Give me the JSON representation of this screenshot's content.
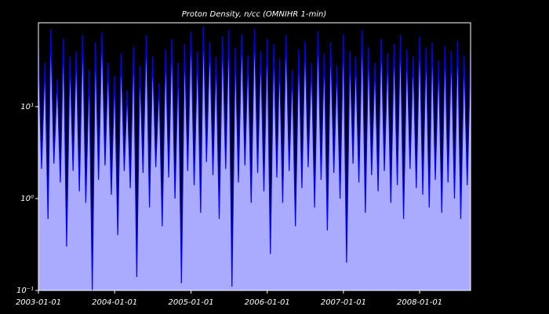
{
  "chart_data": {
    "type": "line",
    "title": "Proton Density, n/cc (OMNIHR 1-min)",
    "x": [
      "2003-01-01",
      "2003-01-16",
      "2003-02-01",
      "2003-02-16",
      "2003-03-01",
      "2003-03-16",
      "2003-04-01",
      "2003-04-16",
      "2003-05-01",
      "2003-05-16",
      "2003-06-01",
      "2003-06-16",
      "2003-07-01",
      "2003-07-16",
      "2003-08-01",
      "2003-08-16",
      "2003-09-01",
      "2003-09-16",
      "2003-10-01",
      "2003-10-16",
      "2003-11-01",
      "2003-11-16",
      "2003-12-01",
      "2003-12-16",
      "2004-01-01",
      "2004-01-16",
      "2004-02-01",
      "2004-02-16",
      "2004-03-01",
      "2004-03-16",
      "2004-04-01",
      "2004-04-16",
      "2004-05-01",
      "2004-05-16",
      "2004-06-01",
      "2004-06-16",
      "2004-07-01",
      "2004-07-16",
      "2004-08-01",
      "2004-08-16",
      "2004-09-01",
      "2004-09-16",
      "2004-10-01",
      "2004-10-16",
      "2004-11-01",
      "2004-11-16",
      "2004-12-01",
      "2004-12-16",
      "2005-01-01",
      "2005-01-16",
      "2005-02-01",
      "2005-02-16",
      "2005-03-01",
      "2005-03-16",
      "2005-04-01",
      "2005-04-16",
      "2005-05-01",
      "2005-05-16",
      "2005-06-01",
      "2005-06-16",
      "2005-07-01",
      "2005-07-16",
      "2005-08-01",
      "2005-08-16",
      "2005-09-01",
      "2005-09-16",
      "2005-10-01",
      "2005-10-16",
      "2005-11-01",
      "2005-11-16",
      "2005-12-01",
      "2005-12-16",
      "2006-01-01",
      "2006-01-16",
      "2006-02-01",
      "2006-02-16",
      "2006-03-01",
      "2006-03-16",
      "2006-04-01",
      "2006-04-16",
      "2006-05-01",
      "2006-05-16",
      "2006-06-01",
      "2006-06-16",
      "2006-07-01",
      "2006-07-16",
      "2006-08-01",
      "2006-08-16",
      "2006-09-01",
      "2006-09-16",
      "2006-10-01",
      "2006-10-16",
      "2006-11-01",
      "2006-11-16",
      "2006-12-01",
      "2006-12-16",
      "2007-01-01",
      "2007-01-16",
      "2007-02-01",
      "2007-02-16",
      "2007-03-01",
      "2007-03-16",
      "2007-04-01",
      "2007-04-16",
      "2007-05-01",
      "2007-05-16",
      "2007-06-01",
      "2007-06-16",
      "2007-07-01",
      "2007-07-16",
      "2007-08-01",
      "2007-08-16",
      "2007-09-01",
      "2007-09-16",
      "2007-10-01",
      "2007-10-16",
      "2007-11-01",
      "2007-11-16",
      "2007-12-01",
      "2007-12-16",
      "2008-01-01",
      "2008-01-16",
      "2008-02-01",
      "2008-02-16",
      "2008-03-01",
      "2008-03-16",
      "2008-04-01",
      "2008-04-16",
      "2008-05-01",
      "2008-05-16",
      "2008-06-01",
      "2008-06-16",
      "2008-07-01",
      "2008-07-16",
      "2008-08-01",
      "2008-08-16",
      "2008-09-01"
    ],
    "series": [
      {
        "color": "#0000ff",
        "fill_color": "#aaaaff",
        "values": [
          45,
          2.1,
          30,
          0.6,
          70,
          2.4,
          20,
          1.5,
          55,
          0.3,
          35,
          2.0,
          40,
          1.2,
          60,
          0.9,
          25,
          0.1,
          50,
          1.6,
          65,
          2.3,
          30,
          1.1,
          22,
          0.4,
          38,
          2.0,
          15,
          1.3,
          45,
          0.14,
          28,
          1.9,
          60,
          0.8,
          35,
          2.2,
          18,
          0.5,
          42,
          1.7,
          55,
          1.0,
          30,
          0.12,
          48,
          2.0,
          65,
          1.4,
          40,
          0.7,
          75,
          2.5,
          50,
          1.8,
          35,
          0.6,
          58,
          2.1,
          68,
          0.11,
          44,
          1.5,
          62,
          2.3,
          36,
          0.9,
          70,
          1.9,
          40,
          1.2,
          55,
          0.25,
          48,
          1.7,
          33,
          0.9,
          60,
          2.0,
          25,
          0.5,
          42,
          1.3,
          52,
          2.2,
          30,
          0.8,
          66,
          1.6,
          38,
          0.45,
          50,
          1.9,
          28,
          1.0,
          62,
          0.2,
          40,
          2.4,
          35,
          1.5,
          68,
          0.7,
          45,
          1.8,
          30,
          1.2,
          55,
          2.0,
          38,
          0.9,
          48,
          1.4,
          60,
          0.6,
          42,
          2.1,
          35,
          1.3,
          58,
          1.1,
          44,
          0.8,
          50,
          1.6,
          32,
          0.7,
          46,
          1.5,
          40,
          1.0,
          52,
          0.6,
          36,
          1.4,
          38
        ]
      }
    ],
    "xlim": [
      "2003-01-01",
      "2008-09-01"
    ],
    "xticks": [
      "2003-01-01",
      "2004-01-01",
      "2005-01-01",
      "2006-01-01",
      "2007-01-01",
      "2008-01-01"
    ],
    "ylim": [
      0.1,
      82
    ],
    "log_y": true,
    "yticks": [
      {
        "value": 0.1,
        "label": "10⁻¹"
      },
      {
        "value": 1,
        "label": "10⁰"
      },
      {
        "value": 10,
        "label": "10¹"
      }
    ]
  }
}
